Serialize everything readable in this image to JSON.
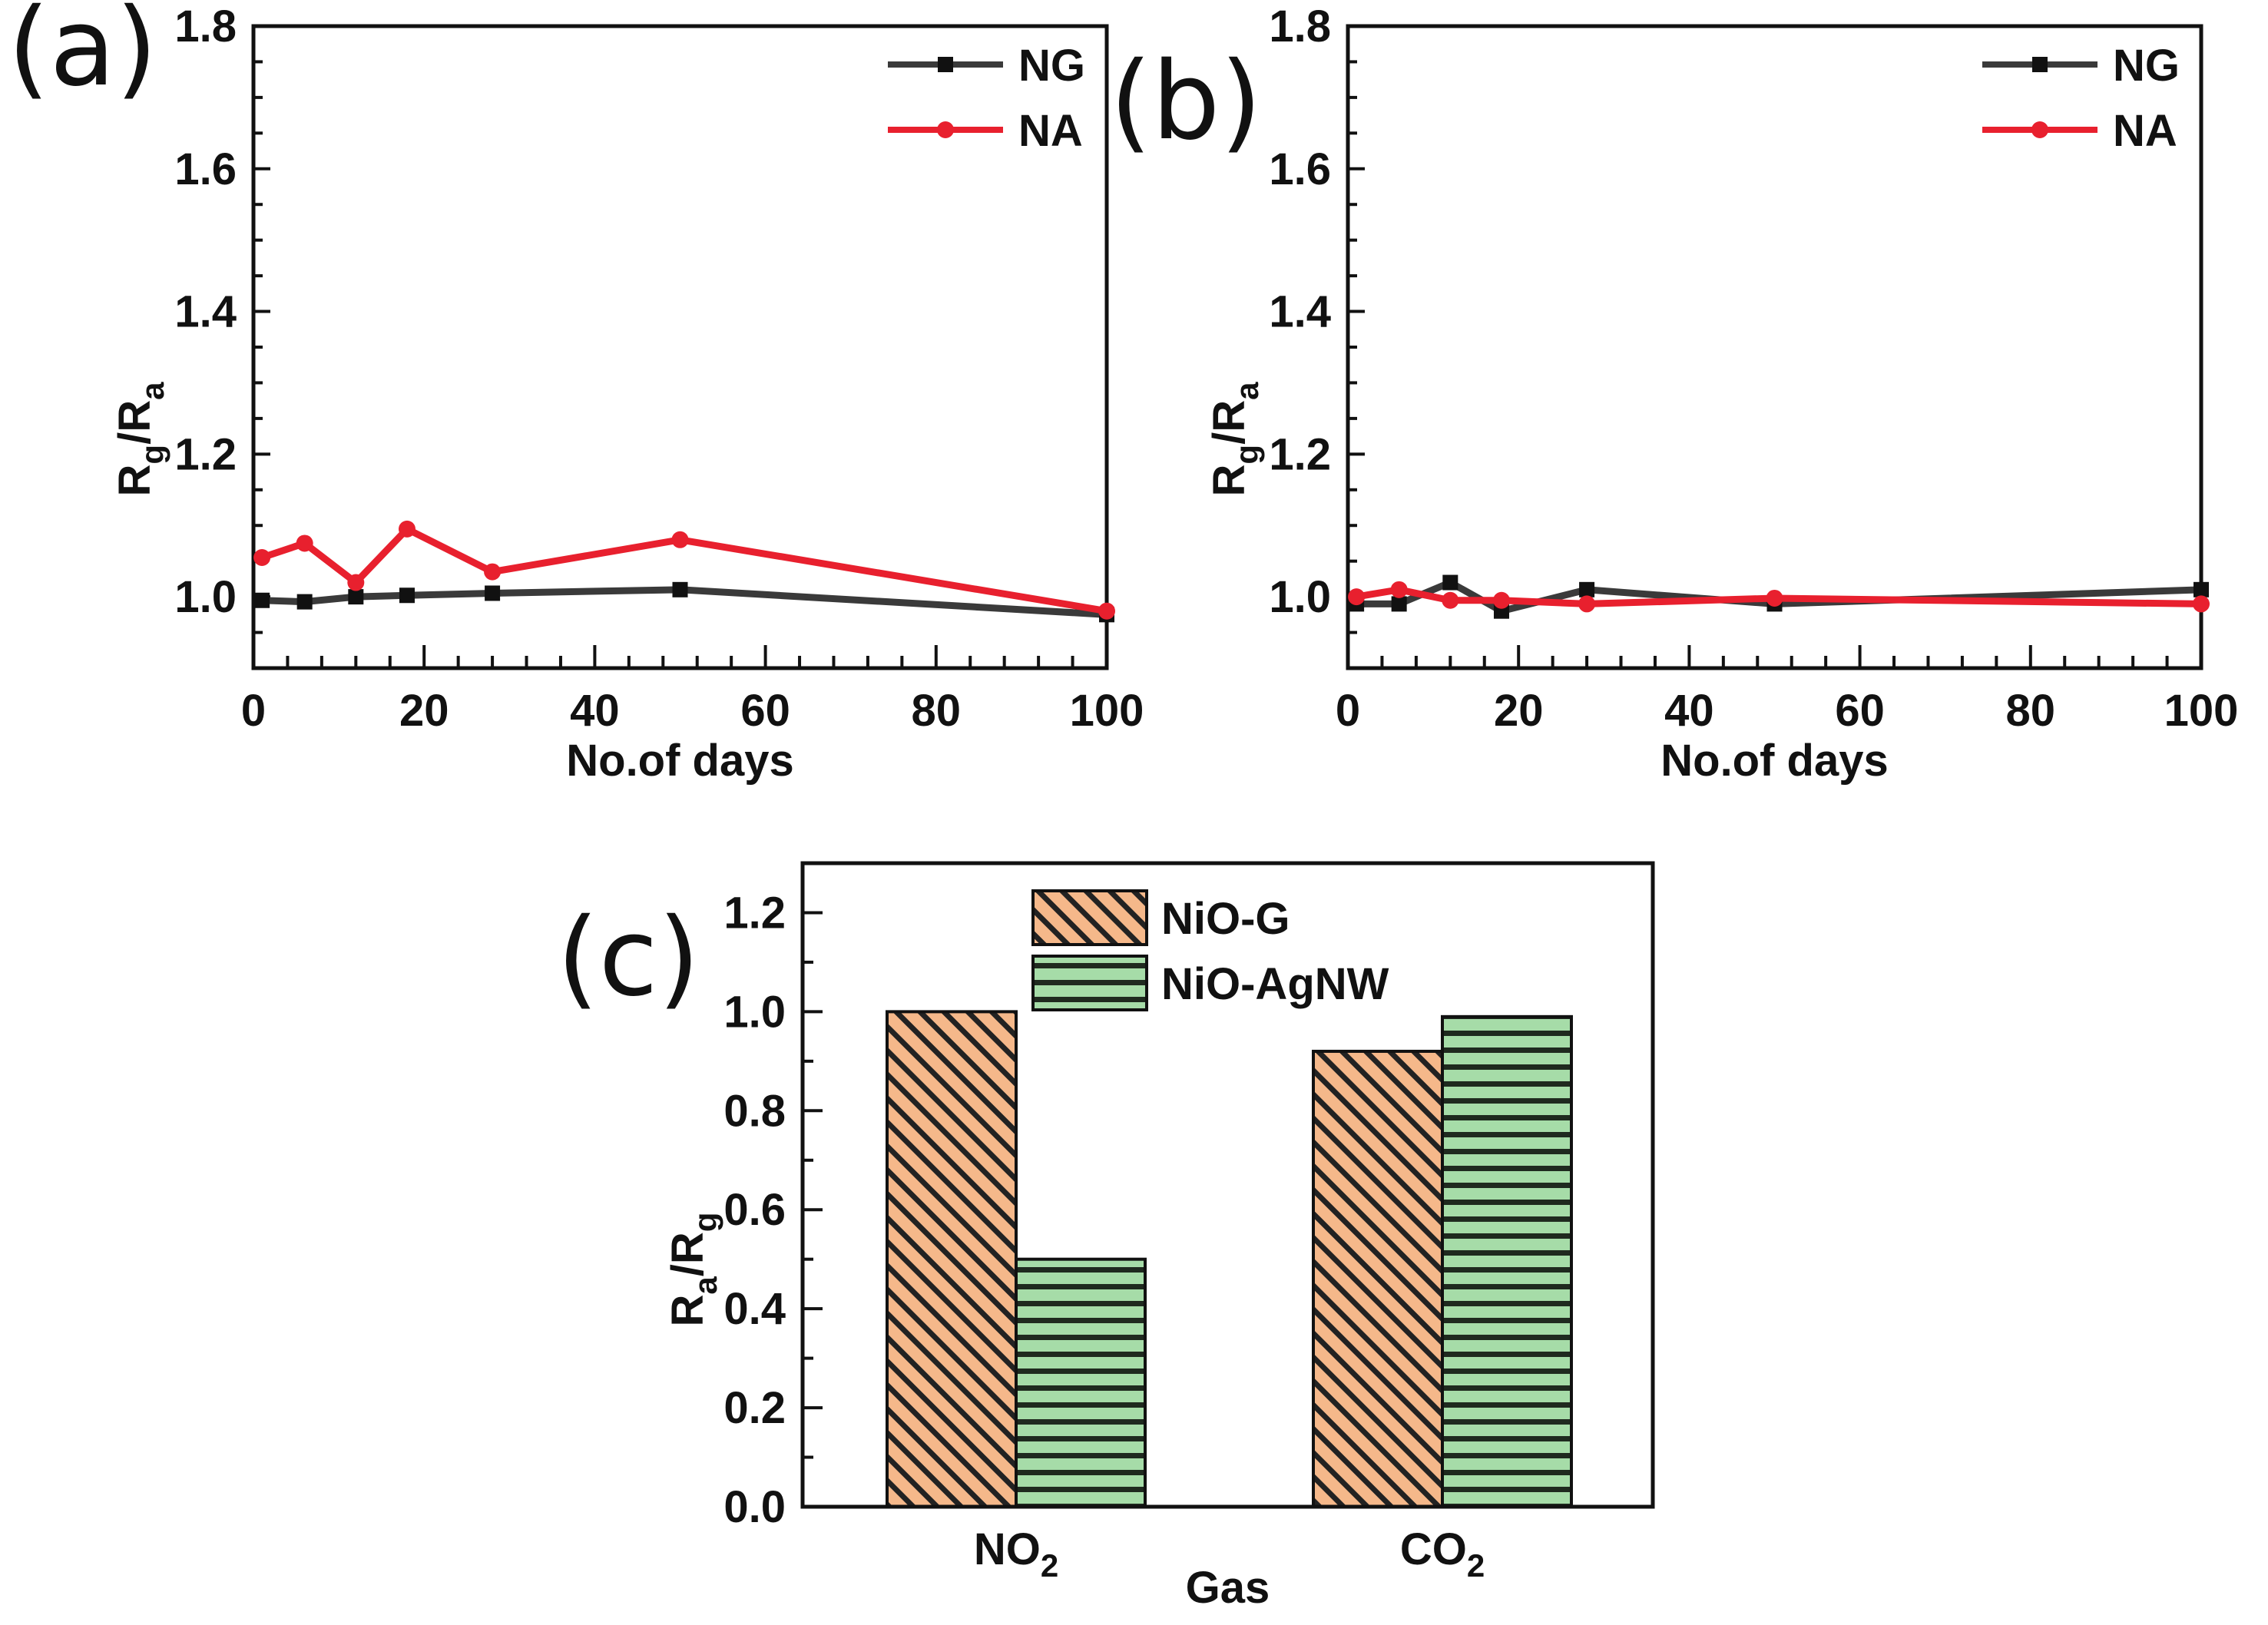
{
  "chart_data": [
    {
      "panel_label": "(a)",
      "type": "line",
      "xlabel": "No.of days",
      "ylabel": "R_g/R_a",
      "ylabel_main": "R",
      "ylabel_sub1": "g",
      "ylabel_mid": "/R",
      "ylabel_sub2": "a",
      "xlim": [
        0,
        100
      ],
      "ylim": [
        0.9,
        1.8
      ],
      "xticks": [
        "0",
        "20",
        "40",
        "60",
        "80",
        "100"
      ],
      "yticks": [
        "1.0",
        "1.2",
        "1.4",
        "1.6",
        "1.8"
      ],
      "legend_position": "top-right",
      "series": [
        {
          "name": "NG",
          "color": "#3a3a3a",
          "marker": "square",
          "x": [
            1,
            6,
            12,
            18,
            28,
            50,
            100
          ],
          "y": [
            0.995,
            0.993,
            1.0,
            1.002,
            1.005,
            1.01,
            0.975
          ]
        },
        {
          "name": "NA",
          "color": "#e8202e",
          "marker": "circle",
          "x": [
            1,
            6,
            12,
            18,
            28,
            50,
            100
          ],
          "y": [
            1.055,
            1.075,
            1.02,
            1.095,
            1.035,
            1.08,
            0.98
          ]
        }
      ]
    },
    {
      "panel_label": "(b)",
      "type": "line",
      "xlabel": "No.of days",
      "ylabel": "R_g/R_a",
      "ylabel_main": "R",
      "ylabel_sub1": "g",
      "ylabel_mid": "/R",
      "ylabel_sub2": "a",
      "xlim": [
        0,
        100
      ],
      "ylim": [
        0.9,
        1.8
      ],
      "xticks": [
        "0",
        "20",
        "40",
        "60",
        "80",
        "100"
      ],
      "yticks": [
        "1.0",
        "1.2",
        "1.4",
        "1.6",
        "1.8"
      ],
      "legend_position": "top-right",
      "series": [
        {
          "name": "NG",
          "color": "#3a3a3a",
          "marker": "square",
          "x": [
            1,
            6,
            12,
            18,
            28,
            50,
            100
          ],
          "y": [
            0.99,
            0.99,
            1.02,
            0.98,
            1.01,
            0.99,
            1.01
          ]
        },
        {
          "name": "NA",
          "color": "#e8202e",
          "marker": "circle",
          "x": [
            1,
            6,
            12,
            18,
            28,
            50,
            100
          ],
          "y": [
            1.0,
            1.01,
            0.995,
            0.995,
            0.99,
            0.998,
            0.99
          ]
        }
      ]
    },
    {
      "panel_label": "(c)",
      "type": "bar",
      "xlabel": "Gas",
      "ylabel": "R_a/R_g",
      "ylabel_main": "R",
      "ylabel_sub1": "a",
      "ylabel_mid": "/R",
      "ylabel_sub2": "g",
      "categories": [
        "NO2",
        "CO2"
      ],
      "category_main": [
        "NO",
        "CO"
      ],
      "category_sub": [
        "2",
        "2"
      ],
      "ylim": [
        0,
        1.3
      ],
      "yticks": [
        "0.0",
        "0.2",
        "0.4",
        "0.6",
        "0.8",
        "1.0",
        "1.2"
      ],
      "legend_position": "top-center",
      "series": [
        {
          "name": "NiO-G",
          "color": "#f5b88a",
          "pattern": "diagonal-hatch",
          "values": [
            1.0,
            0.92
          ]
        },
        {
          "name": "NiO-AgNW",
          "color": "#a6dca8",
          "pattern": "horizontal-hatch",
          "values": [
            0.5,
            0.99
          ]
        }
      ]
    }
  ]
}
